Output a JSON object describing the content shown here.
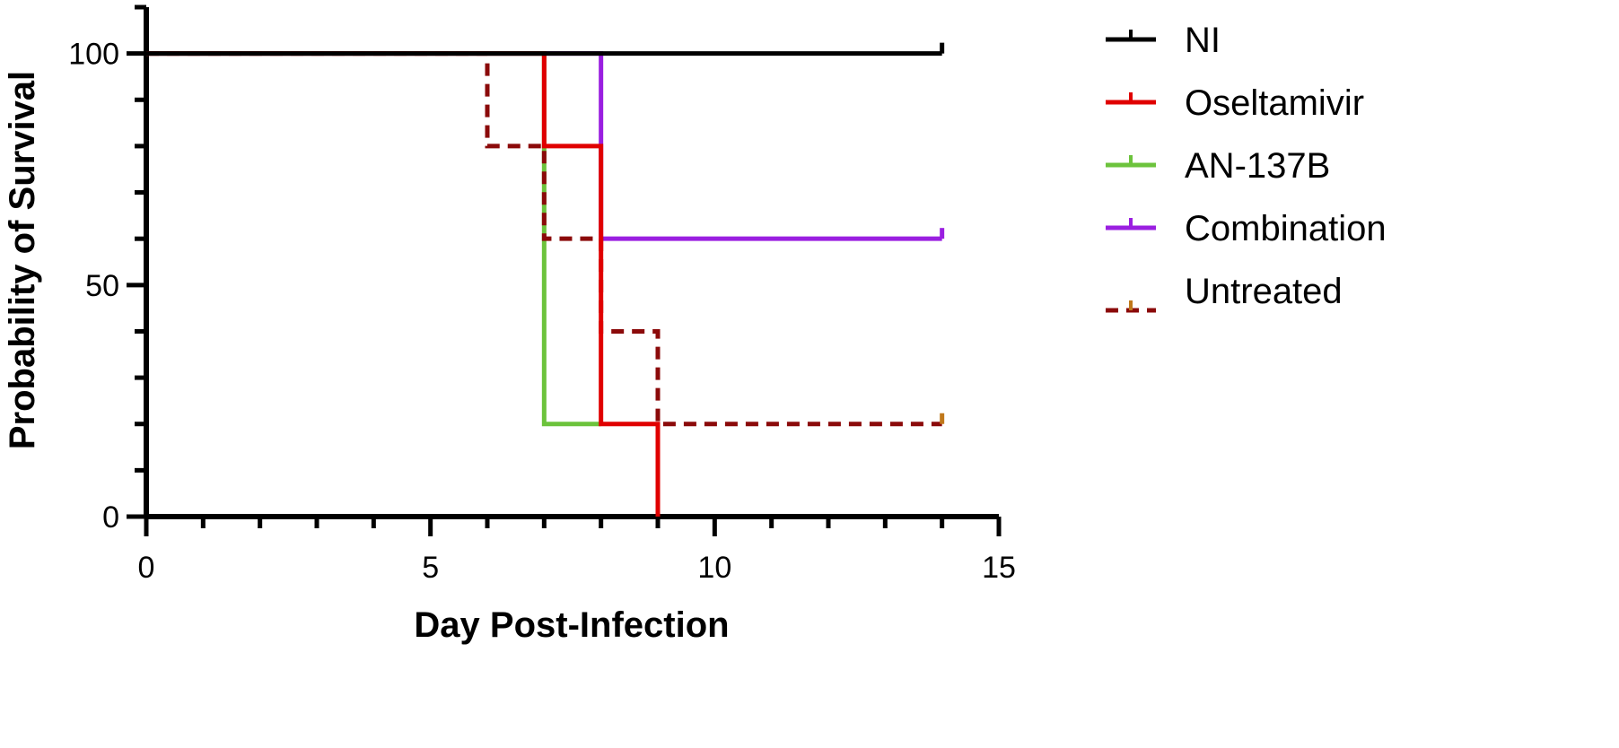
{
  "chart_data": {
    "type": "line",
    "subtype": "kaplan-meier step",
    "xlabel": "Day Post-Infection",
    "ylabel": "Probability of Survival",
    "xlim": [
      0,
      15
    ],
    "ylim": [
      0,
      110
    ],
    "xticks": [
      0,
      5,
      10,
      15
    ],
    "yticks": [
      0,
      50,
      100
    ],
    "x_minor_step": 1,
    "y_minor_step": 10,
    "grid": false,
    "legend_position": "right",
    "series": [
      {
        "name": "NI",
        "color": "#000000",
        "dashed": false,
        "x": [
          0,
          14
        ],
        "y": [
          100,
          100
        ],
        "censor": [
          [
            14,
            100
          ]
        ]
      },
      {
        "name": "Oseltamivir",
        "color": "#e00000",
        "dashed": false,
        "x": [
          0,
          7,
          8,
          9
        ],
        "y": [
          100,
          80,
          20,
          0
        ],
        "censor": []
      },
      {
        "name": "AN-137B",
        "color": "#6cc33c",
        "dashed": false,
        "x": [
          0,
          7,
          8
        ],
        "y": [
          100,
          20,
          20
        ],
        "censor": []
      },
      {
        "name": "Combination",
        "color": "#9a1fe0",
        "dashed": false,
        "x": [
          0,
          8,
          14
        ],
        "y": [
          100,
          60,
          60
        ],
        "censor": [
          [
            14,
            60
          ]
        ]
      },
      {
        "name": "Untreated",
        "color": "#8b0a0a",
        "dashed": true,
        "x": [
          0,
          6,
          7,
          8,
          9,
          14
        ],
        "y": [
          100,
          80,
          60,
          40,
          20,
          20
        ],
        "censor": [
          [
            14,
            20
          ]
        ]
      }
    ]
  }
}
